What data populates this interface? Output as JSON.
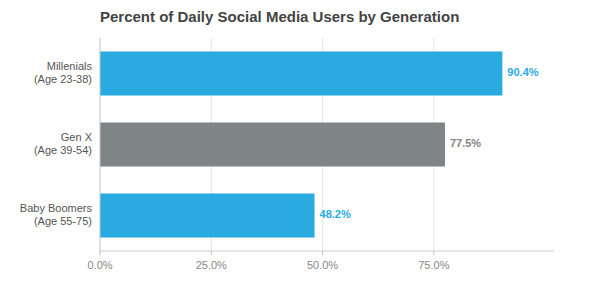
{
  "chart_data": {
    "type": "bar",
    "orientation": "horizontal",
    "title": "Percent of Daily Social Media Users by Generation",
    "categories": [
      "Baby Boomers\n(Age 55-75)",
      "Gen X\n(Age 39-54)",
      "Millenials\n(Age 23-38)"
    ],
    "values": [
      48.2,
      77.5,
      90.4
    ],
    "value_labels": [
      "48.2%",
      "77.5%",
      "90.4%"
    ],
    "colors": [
      "#29ABE2",
      "#7F8487",
      "#29ABE2"
    ],
    "xlim": [
      0,
      102
    ],
    "xticks": [
      {
        "value": 0,
        "label": "0.0%"
      },
      {
        "value": 25,
        "label": "25.0%"
      },
      {
        "value": 50,
        "label": "50.0%"
      },
      {
        "value": 75,
        "label": "75.0%"
      }
    ],
    "grid": true
  }
}
